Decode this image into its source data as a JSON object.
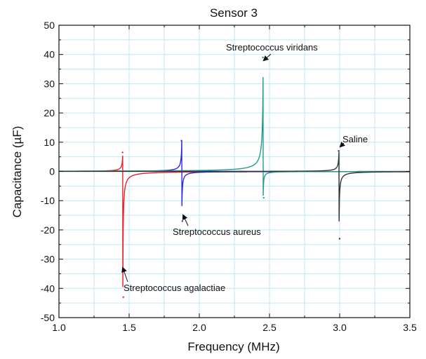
{
  "chart_data": {
    "type": "line",
    "title": "Sensor 3",
    "xlabel": "Frequency (MHz)",
    "ylabel": "Capacitance (µF)",
    "xlim": [
      1.0,
      3.5
    ],
    "ylim": [
      -50,
      50
    ],
    "x_ticks": [
      "1.0",
      "1.5",
      "2.0",
      "2.5",
      "3.0",
      "3.5"
    ],
    "y_ticks": [
      "50",
      "40",
      "30",
      "20",
      "10",
      "0",
      "-10",
      "-20",
      "-30",
      "-40",
      "-50"
    ],
    "grid": true,
    "series": [
      {
        "color": "#e8202a",
        "resonance_mhz": 1.455,
        "peak": 6.5,
        "trough": -43
      },
      {
        "color": "#2a2ae0",
        "resonance_mhz": 1.875,
        "peak": 10.5,
        "trough": -17
      },
      {
        "color": "#1f9d8c",
        "resonance_mhz": 2.455,
        "peak": 39,
        "trough": -9
      },
      {
        "color": "#333333",
        "resonance_mhz": 2.995,
        "peak": 7,
        "trough": -23
      }
    ],
    "annotations": [
      {
        "text": "Streptococcus agalactiae",
        "x": 1.455,
        "y": -33
      },
      {
        "text": "Streptococcus aureus",
        "x": 1.885,
        "y": -15
      },
      {
        "text": "Streptococcus viridans",
        "x": 2.46,
        "y": 38
      },
      {
        "text": "Saline",
        "x": 3.005,
        "y": 8.5
      }
    ]
  }
}
